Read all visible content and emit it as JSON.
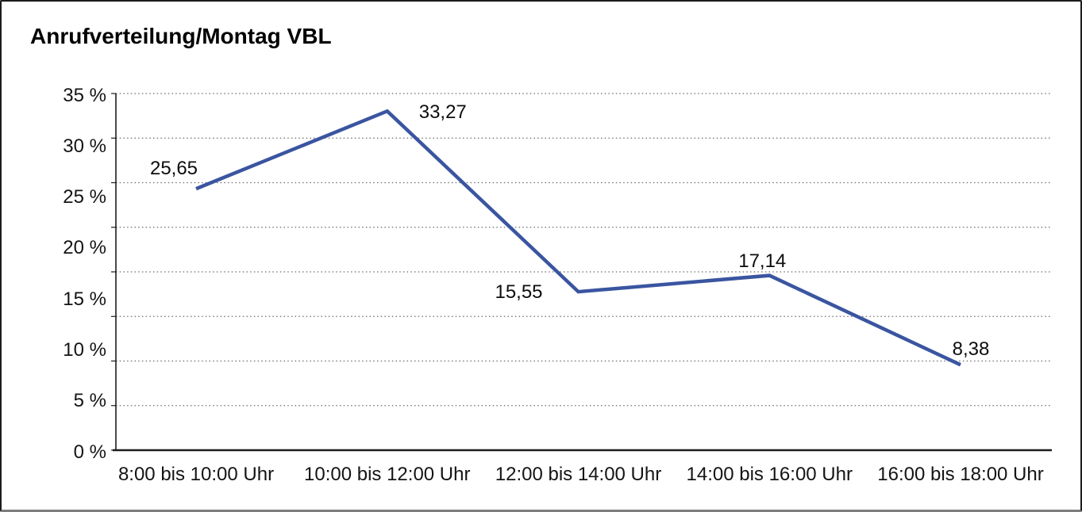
{
  "chart_data": {
    "type": "line",
    "title": "Anrufverteilung/Montag VBL",
    "categories": [
      "8:00 bis 10:00 Uhr",
      "10:00 bis 12:00 Uhr",
      "12:00 bis 14:00 Uhr",
      "14:00 bis 16:00 Uhr",
      "16:00 bis 18:00 Uhr"
    ],
    "values": [
      25.65,
      33.27,
      15.55,
      17.14,
      8.38
    ],
    "value_labels": [
      "25,65",
      "33,27",
      "15,55",
      "17,14",
      "8,38"
    ],
    "xlabel": "",
    "ylabel": "",
    "ylim": [
      0,
      35
    ],
    "y_tick_step": 5,
    "y_tick_labels": [
      "35 %",
      "30 %",
      "25 %",
      "20 %",
      "15 %",
      "10 %",
      "5 %",
      "0 %"
    ],
    "y_tick_values": [
      35,
      30,
      25,
      20,
      15,
      10,
      5,
      0
    ],
    "grid": "horizontal-dotted",
    "gridline_divisions": 8,
    "legend": "none",
    "colors": {
      "line": "#3A55A0",
      "grid": "#6b6b6b",
      "axis": "#1c1c1c",
      "text": "#0d0d0d"
    }
  }
}
